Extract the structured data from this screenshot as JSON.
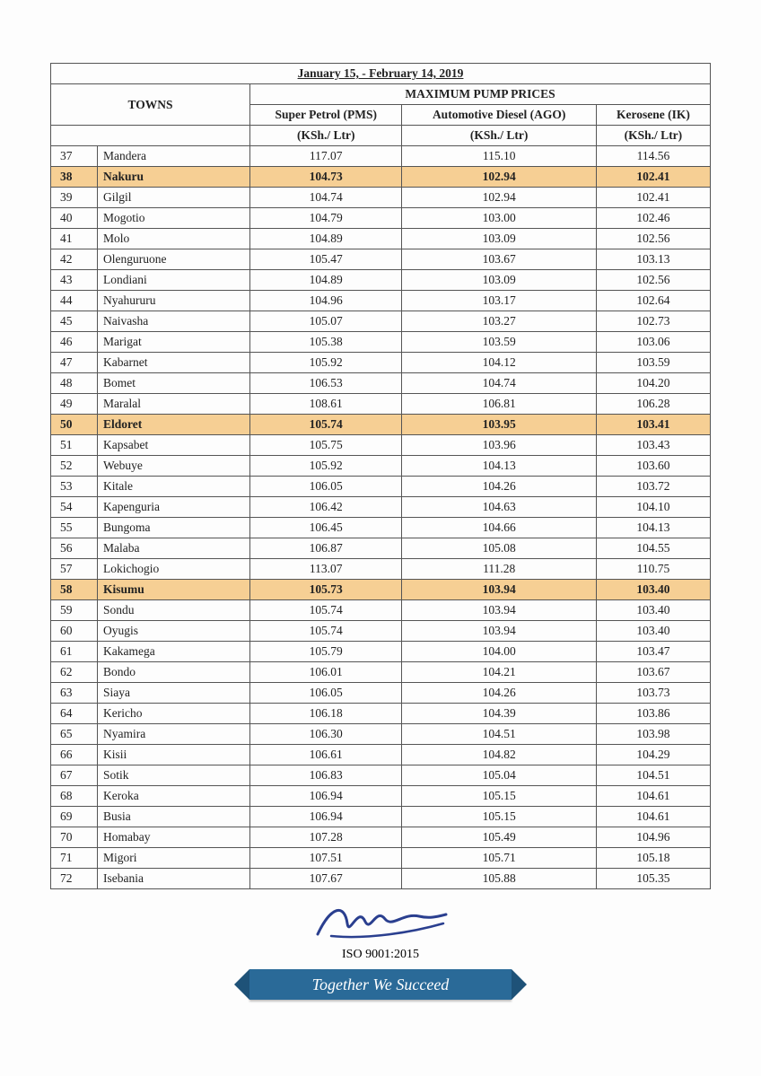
{
  "header": {
    "date_range": "January 15, - February 14, 2019",
    "towns_label": "TOWNS",
    "max_label": "MAXIMUM PUMP PRICES",
    "col1": "Super Petrol (PMS)",
    "col2": "Automotive Diesel (AGO)",
    "col3": "Kerosene (IK)",
    "unit": "(KSh./ Ltr)"
  },
  "styling": {
    "highlight_color": "#f6cf94",
    "banner_color": "#2a6a98",
    "banner_end_color": "#1e5278",
    "border_color": "#555555",
    "text_color": "#222222",
    "font_family": "Times New Roman",
    "base_font_size": 13.5,
    "signature_color": "#2a3f8f"
  },
  "rows": [
    {
      "n": "37",
      "town": "Mandera",
      "pms": "117.07",
      "ago": "115.10",
      "ik": "114.56",
      "hl": false
    },
    {
      "n": "38",
      "town": "Nakuru",
      "pms": "104.73",
      "ago": "102.94",
      "ik": "102.41",
      "hl": true
    },
    {
      "n": "39",
      "town": "Gilgil",
      "pms": "104.74",
      "ago": "102.94",
      "ik": "102.41",
      "hl": false
    },
    {
      "n": "40",
      "town": "Mogotio",
      "pms": "104.79",
      "ago": "103.00",
      "ik": "102.46",
      "hl": false
    },
    {
      "n": "41",
      "town": "Molo",
      "pms": "104.89",
      "ago": "103.09",
      "ik": "102.56",
      "hl": false
    },
    {
      "n": "42",
      "town": "Olenguruone",
      "pms": "105.47",
      "ago": "103.67",
      "ik": "103.13",
      "hl": false
    },
    {
      "n": "43",
      "town": "Londiani",
      "pms": "104.89",
      "ago": "103.09",
      "ik": "102.56",
      "hl": false
    },
    {
      "n": "44",
      "town": "Nyahururu",
      "pms": "104.96",
      "ago": "103.17",
      "ik": "102.64",
      "hl": false
    },
    {
      "n": "45",
      "town": "Naivasha",
      "pms": "105.07",
      "ago": "103.27",
      "ik": "102.73",
      "hl": false
    },
    {
      "n": "46",
      "town": "Marigat",
      "pms": "105.38",
      "ago": "103.59",
      "ik": "103.06",
      "hl": false
    },
    {
      "n": "47",
      "town": "Kabarnet",
      "pms": "105.92",
      "ago": "104.12",
      "ik": "103.59",
      "hl": false
    },
    {
      "n": "48",
      "town": "Bomet",
      "pms": "106.53",
      "ago": "104.74",
      "ik": "104.20",
      "hl": false
    },
    {
      "n": "49",
      "town": "Maralal",
      "pms": "108.61",
      "ago": "106.81",
      "ik": "106.28",
      "hl": false
    },
    {
      "n": "50",
      "town": "Eldoret",
      "pms": "105.74",
      "ago": "103.95",
      "ik": "103.41",
      "hl": true
    },
    {
      "n": "51",
      "town": "Kapsabet",
      "pms": "105.75",
      "ago": "103.96",
      "ik": "103.43",
      "hl": false
    },
    {
      "n": "52",
      "town": "Webuye",
      "pms": "105.92",
      "ago": "104.13",
      "ik": "103.60",
      "hl": false
    },
    {
      "n": "53",
      "town": "Kitale",
      "pms": "106.05",
      "ago": "104.26",
      "ik": "103.72",
      "hl": false
    },
    {
      "n": "54",
      "town": "Kapenguria",
      "pms": "106.42",
      "ago": "104.63",
      "ik": "104.10",
      "hl": false
    },
    {
      "n": "55",
      "town": "Bungoma",
      "pms": "106.45",
      "ago": "104.66",
      "ik": "104.13",
      "hl": false
    },
    {
      "n": "56",
      "town": "Malaba",
      "pms": "106.87",
      "ago": "105.08",
      "ik": "104.55",
      "hl": false
    },
    {
      "n": "57",
      "town": "Lokichogio",
      "pms": "113.07",
      "ago": "111.28",
      "ik": "110.75",
      "hl": false
    },
    {
      "n": "58",
      "town": "Kisumu",
      "pms": "105.73",
      "ago": "103.94",
      "ik": "103.40",
      "hl": true
    },
    {
      "n": "59",
      "town": "Sondu",
      "pms": "105.74",
      "ago": "103.94",
      "ik": "103.40",
      "hl": false
    },
    {
      "n": "60",
      "town": "Oyugis",
      "pms": "105.74",
      "ago": "103.94",
      "ik": "103.40",
      "hl": false
    },
    {
      "n": "61",
      "town": "Kakamega",
      "pms": "105.79",
      "ago": "104.00",
      "ik": "103.47",
      "hl": false
    },
    {
      "n": "62",
      "town": "Bondo",
      "pms": "106.01",
      "ago": "104.21",
      "ik": "103.67",
      "hl": false
    },
    {
      "n": "63",
      "town": "Siaya",
      "pms": "106.05",
      "ago": "104.26",
      "ik": "103.73",
      "hl": false
    },
    {
      "n": "64",
      "town": "Kericho",
      "pms": "106.18",
      "ago": "104.39",
      "ik": "103.86",
      "hl": false
    },
    {
      "n": "65",
      "town": "Nyamira",
      "pms": "106.30",
      "ago": "104.51",
      "ik": "103.98",
      "hl": false
    },
    {
      "n": "66",
      "town": "Kisii",
      "pms": "106.61",
      "ago": "104.82",
      "ik": "104.29",
      "hl": false
    },
    {
      "n": "67",
      "town": "Sotik",
      "pms": "106.83",
      "ago": "105.04",
      "ik": "104.51",
      "hl": false
    },
    {
      "n": "68",
      "town": "Keroka",
      "pms": "106.94",
      "ago": "105.15",
      "ik": "104.61",
      "hl": false
    },
    {
      "n": "69",
      "town": "Busia",
      "pms": "106.94",
      "ago": "105.15",
      "ik": "104.61",
      "hl": false
    },
    {
      "n": "70",
      "town": "Homabay",
      "pms": "107.28",
      "ago": "105.49",
      "ik": "104.96",
      "hl": false
    },
    {
      "n": "71",
      "town": "Migori",
      "pms": "107.51",
      "ago": "105.71",
      "ik": "105.18",
      "hl": false
    },
    {
      "n": "72",
      "town": "Isebania",
      "pms": "107.67",
      "ago": "105.88",
      "ik": "105.35",
      "hl": false
    }
  ],
  "footer": {
    "iso": "ISO 9001:2015",
    "slogan": "Together We Succeed"
  }
}
